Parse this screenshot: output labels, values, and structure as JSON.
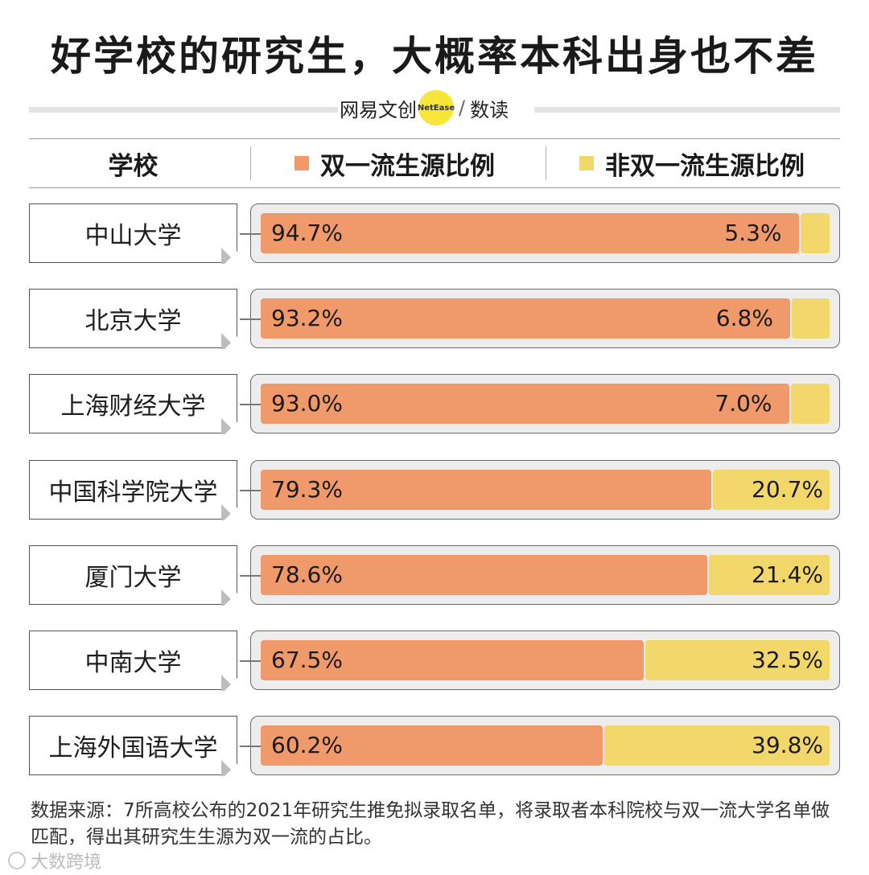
{
  "title": "好学校的研究生，大概率本科出身也不差",
  "brand": {
    "left": "网易文创",
    "badge": "NetEase",
    "right": "数读"
  },
  "header": {
    "school": "学校",
    "series_a": "双一流生源比例",
    "series_b": "非双一流生源比例"
  },
  "colors": {
    "series_a": "#f0996a",
    "series_b": "#f2d76a",
    "track": "#ededed"
  },
  "chart_data": {
    "type": "bar",
    "orientation": "horizontal-stacked-100",
    "title": "好学校的研究生，大概率本科出身也不差",
    "categories": [
      "中山大学",
      "北京大学",
      "上海财经大学",
      "中国科学院大学",
      "厦门大学",
      "中南大学",
      "上海外国语大学"
    ],
    "series": [
      {
        "name": "双一流生源比例",
        "values": [
          94.7,
          93.2,
          93.0,
          79.3,
          78.6,
          67.5,
          60.2
        ],
        "labels": [
          "94.7%",
          "93.2%",
          "93.0%",
          "79.3%",
          "78.6%",
          "67.5%",
          "60.2%"
        ]
      },
      {
        "name": "非双一流生源比例",
        "values": [
          5.3,
          6.8,
          7.0,
          20.7,
          21.4,
          32.5,
          39.8
        ],
        "labels": [
          "5.3%",
          "6.8%",
          "7.0%",
          "20.7%",
          "21.4%",
          "32.5%",
          "39.8%"
        ]
      }
    ],
    "xlim": [
      0,
      100
    ],
    "unit": "%"
  },
  "note": "数据来源：7所高校公布的2021年研究生推免拟录取名单，将录取者本科院校与双一流大学名单做匹配，得出其研究生生源为双一流的占比。",
  "watermark": "大数跨境"
}
